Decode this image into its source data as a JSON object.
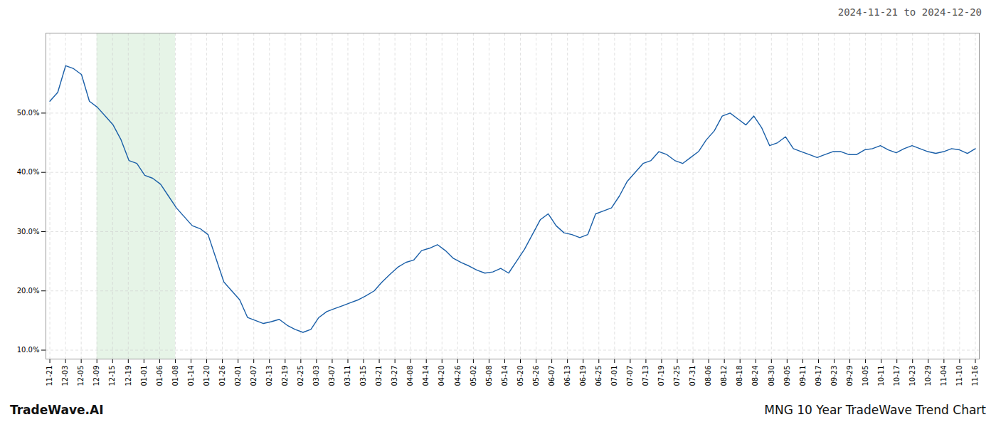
{
  "chart_data": {
    "type": "line",
    "title": "MNG 10 Year TradeWave Trend Chart",
    "subtitle": "2024-11-21 to 2024-12-20",
    "caption": "TradeWave.AI",
    "color": "#1a5fa8",
    "grid": true,
    "x": [
      0,
      1,
      2,
      3,
      4,
      5,
      6,
      7,
      8,
      9,
      10,
      11,
      12,
      13,
      14,
      15,
      16,
      17,
      18,
      19,
      20,
      21,
      22,
      23,
      24,
      25,
      26,
      27,
      28,
      29,
      30,
      31,
      32,
      33,
      34,
      35,
      36,
      37,
      38,
      39,
      40,
      41,
      42,
      43,
      44,
      45,
      46,
      47,
      48,
      49,
      50,
      51,
      52,
      53,
      54,
      55,
      56,
      57,
      58,
      59,
      60,
      61,
      62,
      63,
      64,
      65,
      66,
      67,
      68,
      69,
      70,
      71,
      72,
      73,
      74,
      75,
      76,
      77,
      78,
      79,
      80,
      81,
      82,
      83,
      84,
      85,
      86,
      87,
      88,
      89,
      90,
      91,
      92,
      93,
      94,
      95,
      96,
      97,
      98,
      99,
      100,
      101,
      102,
      103,
      104,
      105,
      106,
      107,
      108,
      109,
      110,
      111,
      112,
      113,
      114,
      115,
      116,
      117
    ],
    "values": [
      0.52,
      0.535,
      0.58,
      0.575,
      0.565,
      0.52,
      0.51,
      0.495,
      0.48,
      0.455,
      0.42,
      0.415,
      0.395,
      0.39,
      0.38,
      0.36,
      0.34,
      0.325,
      0.31,
      0.305,
      0.295,
      0.255,
      0.215,
      0.2,
      0.185,
      0.155,
      0.15,
      0.145,
      0.148,
      0.152,
      0.142,
      0.135,
      0.13,
      0.135,
      0.155,
      0.165,
      0.17,
      0.175,
      0.18,
      0.185,
      0.192,
      0.2,
      0.215,
      0.228,
      0.24,
      0.248,
      0.252,
      0.268,
      0.272,
      0.278,
      0.268,
      0.255,
      0.248,
      0.242,
      0.235,
      0.23,
      0.232,
      0.238,
      0.23,
      0.25,
      0.27,
      0.295,
      0.32,
      0.33,
      0.31,
      0.298,
      0.295,
      0.29,
      0.295,
      0.33,
      0.335,
      0.34,
      0.36,
      0.385,
      0.4,
      0.415,
      0.42,
      0.435,
      0.43,
      0.42,
      0.415,
      0.425,
      0.435,
      0.455,
      0.47,
      0.495,
      0.5,
      0.49,
      0.48,
      0.495,
      0.475,
      0.445,
      0.45,
      0.46,
      0.44,
      0.435,
      0.43,
      0.425,
      0.43,
      0.435,
      0.435,
      0.43,
      0.43,
      0.438,
      0.44,
      0.445,
      0.438,
      0.433,
      0.44,
      0.445,
      0.44,
      0.435,
      0.432,
      0.435,
      0.44,
      0.438,
      0.432,
      0.44
    ],
    "xlim": [
      -0.5,
      117.5
    ],
    "xticks": [
      {
        "value": 0,
        "label": "11-21"
      },
      {
        "value": 1.9830508475,
        "label": "12-03"
      },
      {
        "value": 3.9661016949,
        "label": "12-05"
      },
      {
        "value": 5.9491525424,
        "label": "12-09"
      },
      {
        "value": 7.9322033898,
        "label": "12-15"
      },
      {
        "value": 9.9152542373,
        "label": "12-19"
      },
      {
        "value": 11.8983050847,
        "label": "01-01"
      },
      {
        "value": 13.8813559322,
        "label": "01-06"
      },
      {
        "value": 15.8644067797,
        "label": "01-08"
      },
      {
        "value": 17.8474576271,
        "label": "01-14"
      },
      {
        "value": 19.8305084746,
        "label": "01-20"
      },
      {
        "value": 21.813559322,
        "label": "01-26"
      },
      {
        "value": 23.7966101695,
        "label": "02-01"
      },
      {
        "value": 25.7796610169,
        "label": "02-07"
      },
      {
        "value": 27.7627118644,
        "label": "02-13"
      },
      {
        "value": 29.7457627119,
        "label": "02-19"
      },
      {
        "value": 31.7288135593,
        "label": "02-25"
      },
      {
        "value": 33.7118644068,
        "label": "03-03"
      },
      {
        "value": 35.6949152542,
        "label": "03-07"
      },
      {
        "value": 37.6779661017,
        "label": "03-11"
      },
      {
        "value": 39.6610169492,
        "label": "03-15"
      },
      {
        "value": 41.6440677966,
        "label": "03-21"
      },
      {
        "value": 43.6271186441,
        "label": "03-27"
      },
      {
        "value": 45.6101694915,
        "label": "04-08"
      },
      {
        "value": 47.593220339,
        "label": "04-14"
      },
      {
        "value": 49.5762711864,
        "label": "04-20"
      },
      {
        "value": 51.5593220339,
        "label": "04-26"
      },
      {
        "value": 53.5423728814,
        "label": "05-02"
      },
      {
        "value": 55.5254237288,
        "label": "05-08"
      },
      {
        "value": 57.5084745763,
        "label": "05-14"
      },
      {
        "value": 59.4915254237,
        "label": "05-20"
      },
      {
        "value": 61.4745762712,
        "label": "05-26"
      },
      {
        "value": 63.4576271186,
        "label": "06-07"
      },
      {
        "value": 65.4406779661,
        "label": "06-13"
      },
      {
        "value": 67.4237288136,
        "label": "06-19"
      },
      {
        "value": 69.406779661,
        "label": "06-25"
      },
      {
        "value": 71.3898305085,
        "label": "07-01"
      },
      {
        "value": 73.3728813559,
        "label": "07-07"
      },
      {
        "value": 75.3559322034,
        "label": "07-13"
      },
      {
        "value": 77.3389830508,
        "label": "07-19"
      },
      {
        "value": 79.3220338983,
        "label": "07-25"
      },
      {
        "value": 81.3050847458,
        "label": "07-31"
      },
      {
        "value": 83.2881355932,
        "label": "08-06"
      },
      {
        "value": 85.2711864407,
        "label": "08-12"
      },
      {
        "value": 87.2542372881,
        "label": "08-18"
      },
      {
        "value": 89.2372881356,
        "label": "08-24"
      },
      {
        "value": 91.2203389831,
        "label": "08-30"
      },
      {
        "value": 93.2033898305,
        "label": "09-05"
      },
      {
        "value": 95.186440678,
        "label": "09-11"
      },
      {
        "value": 97.1694915254,
        "label": "09-17"
      },
      {
        "value": 99.1525423729,
        "label": "09-23"
      },
      {
        "value": 101.1355932203,
        "label": "09-29"
      },
      {
        "value": 103.1186440678,
        "label": "10-05"
      },
      {
        "value": 105.1016949153,
        "label": "10-11"
      },
      {
        "value": 107.0847457627,
        "label": "10-17"
      },
      {
        "value": 109.0677966102,
        "label": "10-23"
      },
      {
        "value": 111.0508474576,
        "label": "10-29"
      },
      {
        "value": 113.0338983051,
        "label": "11-04"
      },
      {
        "value": 115.0169491525,
        "label": "11-10"
      },
      {
        "value": 117,
        "label": "11-16"
      }
    ],
    "ylim": [
      0.085,
      0.635
    ],
    "yticks": [
      {
        "value": 0.1,
        "label": "10.0%"
      },
      {
        "value": 0.2,
        "label": "20.0%"
      },
      {
        "value": 0.3,
        "label": "30.0%"
      },
      {
        "value": 0.4,
        "label": "40.0%"
      },
      {
        "value": 0.5,
        "label": "50.0%"
      }
    ],
    "shade": {
      "x": [
        5.9491525424,
        15.8644067797
      ],
      "color": "#c8e6c9"
    }
  }
}
